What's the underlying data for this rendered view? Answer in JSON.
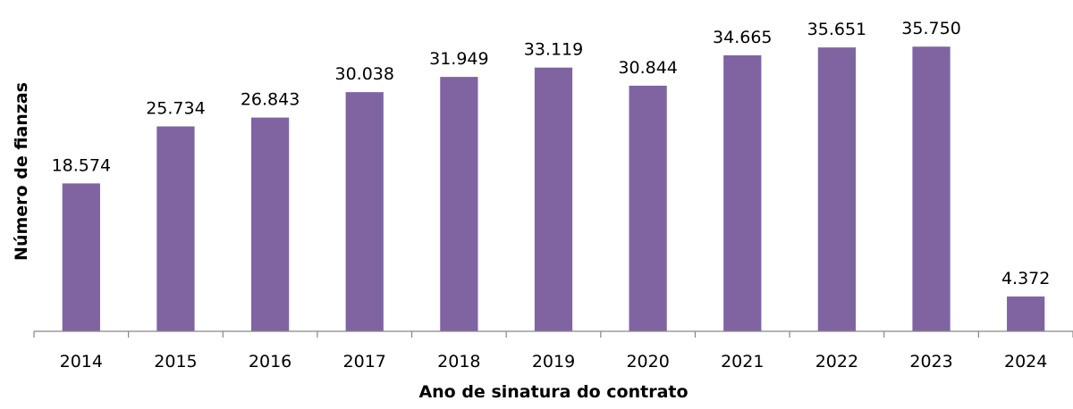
{
  "chart_data": {
    "type": "bar",
    "title": "",
    "xlabel": "Ano de sinatura do contrato",
    "ylabel": "Número de  fianzas",
    "categories": [
      "2014",
      "2015",
      "2016",
      "2017",
      "2018",
      "2019",
      "2020",
      "2021",
      "2022",
      "2023",
      "2024"
    ],
    "values": [
      18574,
      25734,
      26843,
      30038,
      31949,
      33119,
      30844,
      34665,
      35651,
      35750,
      4372
    ],
    "value_labels": [
      "18.574",
      "25.734",
      "26.843",
      "30.038",
      "31.949",
      "33.119",
      "30.844",
      "34.665",
      "35.651",
      "35.750",
      "4.372"
    ],
    "ylim": [
      0,
      36000
    ],
    "grid": false,
    "legend": "none",
    "bar_color": "#8064a2"
  }
}
